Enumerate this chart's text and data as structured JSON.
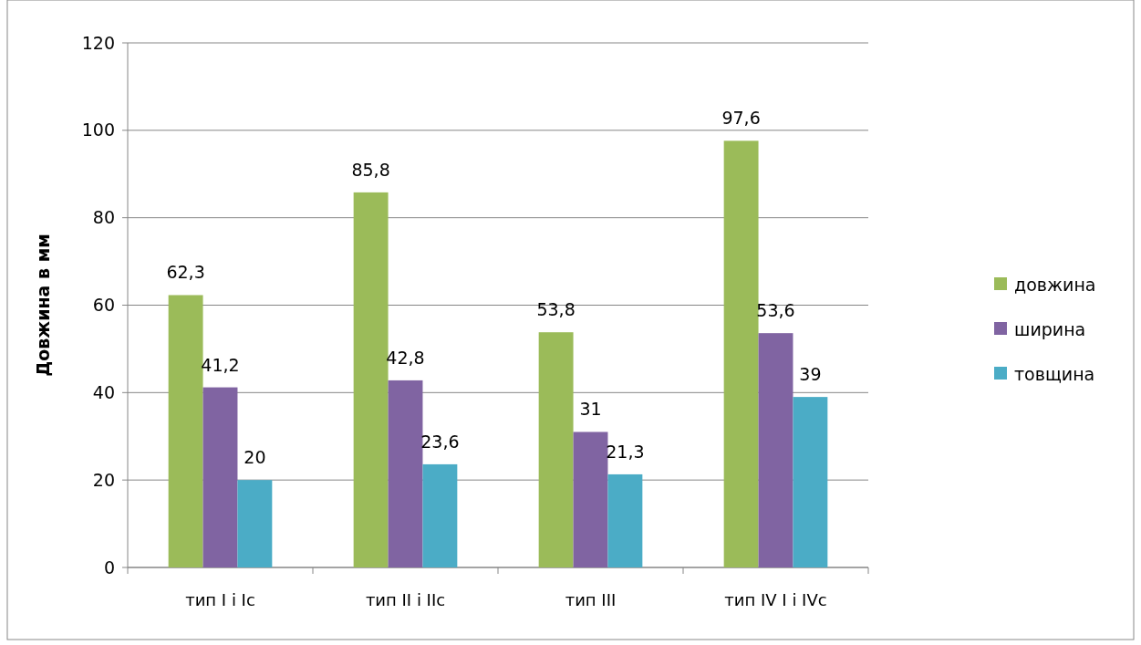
{
  "chart_data": {
    "type": "bar",
    "ylabel": "Довжина в мм",
    "categories": [
      "тип І і Іс",
      "тип ІІ і ІІс",
      "тип ІІІ",
      "тип IV І і IVс"
    ],
    "series": [
      {
        "name": "довжина",
        "color": "#9bbb59",
        "values": [
          62.3,
          85.8,
          53.8,
          97.6
        ],
        "value_labels": [
          "62,3",
          "85,8",
          "53,8",
          "97,6"
        ]
      },
      {
        "name": "ширина",
        "color": "#8064a2",
        "values": [
          41.2,
          42.8,
          31,
          53.6
        ],
        "value_labels": [
          "41,2",
          "42,8",
          "31",
          "53,6"
        ]
      },
      {
        "name": "товщина",
        "color": "#4bacc6",
        "values": [
          20,
          23.6,
          21.3,
          39
        ],
        "value_labels": [
          "20",
          "23,6",
          "21,3",
          "39"
        ]
      }
    ],
    "ylim": [
      0,
      120
    ],
    "yticks": [
      0,
      20,
      40,
      60,
      80,
      100,
      120
    ],
    "grid": "y",
    "legend": "right"
  }
}
